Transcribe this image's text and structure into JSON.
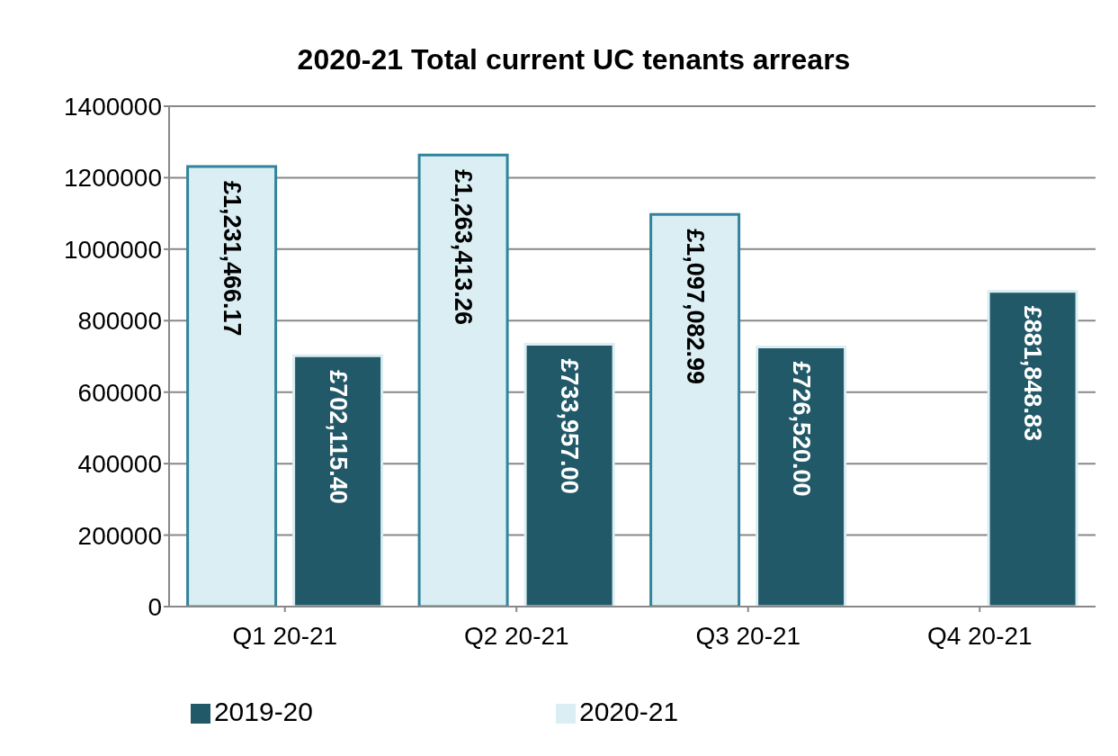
{
  "chart_data": {
    "type": "bar",
    "title": "2020-21  Total current UC tenants arrears",
    "categories": [
      "Q1 20-21",
      "Q2 20-21",
      "Q3 20-21",
      "Q4 20-21"
    ],
    "series": [
      {
        "name": "2020-21",
        "color": "#daeef3",
        "values": [
          1231466.17,
          1263413.26,
          1097082.99,
          null
        ],
        "value_labels": [
          "£1,231,466.17",
          "£1,263,413.26",
          "£1,097,082.99",
          null
        ]
      },
      {
        "name": "2019-20",
        "color": "#215968",
        "values": [
          702115.4,
          733957.0,
          726520.0,
          881848.83
        ],
        "value_labels": [
          "£702,115.40",
          "£733,957.00",
          "£726,520.00",
          "£881,848.83"
        ]
      }
    ],
    "ylim": [
      0,
      1400000
    ],
    "yticks": [
      0,
      200000,
      400000,
      600000,
      800000,
      1000000,
      1200000,
      1400000
    ],
    "grid": "y",
    "legend": "bottom"
  }
}
